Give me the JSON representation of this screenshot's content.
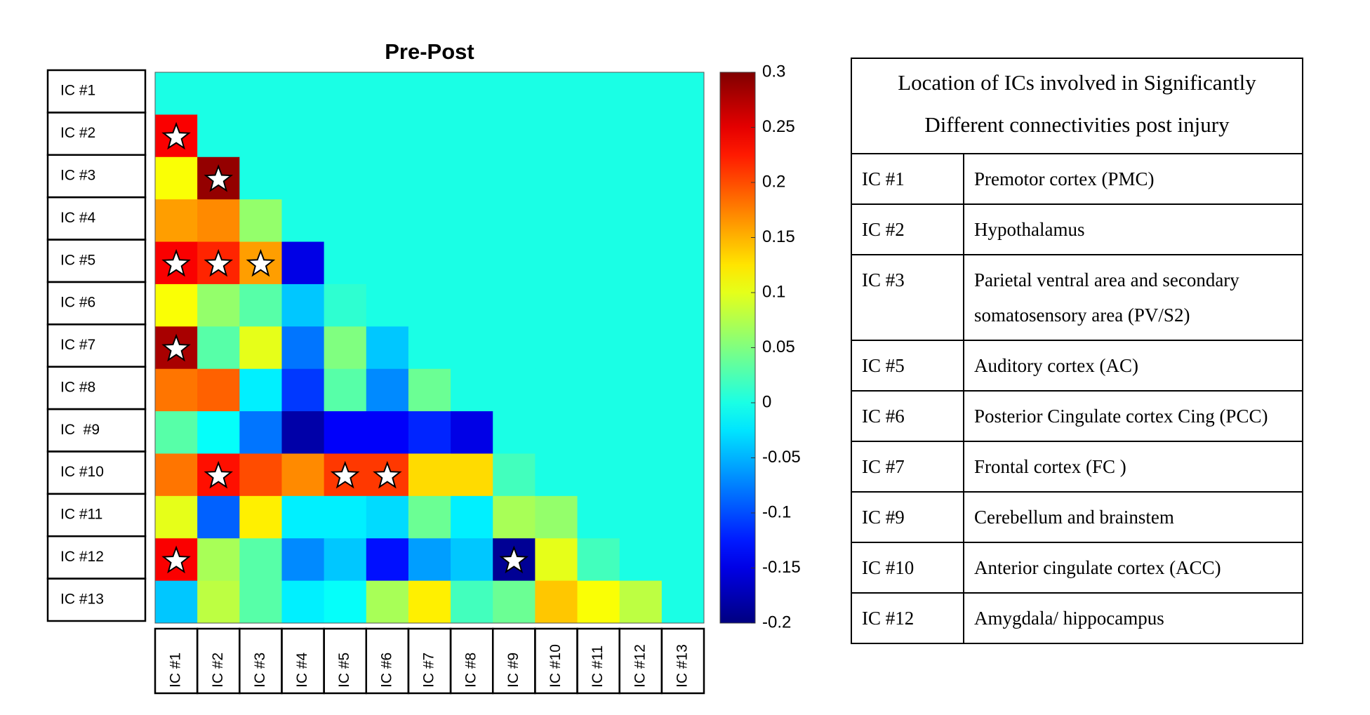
{
  "chart_data": {
    "type": "heatmap",
    "title": "Pre-Post",
    "colormap": "jet",
    "row_labels": [
      "IC #1",
      "IC #2",
      "IC #3",
      "IC #4",
      "IC #5",
      "IC #6",
      "IC #7",
      "IC #8",
      "IC  #9",
      "IC #10",
      "IC #11",
      "IC #12",
      "IC #13"
    ],
    "col_labels": [
      "IC #1",
      "IC #2",
      "IC #3",
      "IC #4",
      "IC #5",
      "IC #6",
      "IC #7",
      "IC #8",
      "IC #9",
      "IC #10",
      "IC #11",
      "IC #12",
      "IC #13"
    ],
    "matrix": [
      [
        0,
        0,
        0,
        0,
        0,
        0,
        0,
        0,
        0,
        0,
        0,
        0,
        0
      ],
      [
        0.24,
        0,
        0,
        0,
        0,
        0,
        0,
        0,
        0,
        0,
        0,
        0,
        0
      ],
      [
        0.11,
        0.29,
        0,
        0,
        0,
        0,
        0,
        0,
        0,
        0,
        0,
        0,
        0
      ],
      [
        0.16,
        0.17,
        0.06,
        0,
        0,
        0,
        0,
        0,
        0,
        0,
        0,
        0,
        0
      ],
      [
        0.24,
        0.22,
        0.16,
        -0.15,
        0,
        0,
        0,
        0,
        0,
        0,
        0,
        0,
        0
      ],
      [
        0.11,
        0.06,
        0.03,
        -0.04,
        0.01,
        0,
        0,
        0,
        0,
        0,
        0,
        0,
        0
      ],
      [
        0.28,
        0.03,
        0.1,
        -0.08,
        0.05,
        -0.04,
        0,
        0,
        0,
        0,
        0,
        0,
        0
      ],
      [
        0.18,
        0.19,
        -0.02,
        -0.11,
        0.03,
        -0.07,
        0.04,
        0,
        0,
        0,
        0,
        0,
        0
      ],
      [
        0.03,
        -0.01,
        -0.08,
        -0.18,
        -0.14,
        -0.14,
        -0.12,
        -0.15,
        0,
        0,
        0,
        0,
        0
      ],
      [
        0.18,
        0.23,
        0.2,
        0.17,
        0.21,
        0.21,
        0.13,
        0.13,
        0.02,
        0,
        0,
        0,
        0
      ],
      [
        0.1,
        -0.09,
        0.12,
        -0.02,
        -0.02,
        -0.03,
        0.04,
        -0.02,
        0.07,
        0.06,
        0,
        0,
        0
      ],
      [
        0.24,
        0.07,
        0.03,
        -0.07,
        -0.04,
        -0.13,
        -0.06,
        -0.04,
        -0.19,
        0.1,
        0.02,
        0,
        0
      ],
      [
        -0.04,
        0.08,
        0.03,
        -0.02,
        -0.01,
        0.07,
        0.12,
        0.02,
        0.04,
        0.14,
        0.11,
        0.08,
        0
      ]
    ],
    "significant": [
      [
        1,
        0
      ],
      [
        2,
        1
      ],
      [
        4,
        0
      ],
      [
        4,
        1
      ],
      [
        4,
        2
      ],
      [
        6,
        0
      ],
      [
        9,
        1
      ],
      [
        9,
        4
      ],
      [
        9,
        5
      ],
      [
        11,
        0
      ],
      [
        11,
        8
      ]
    ],
    "clim": [
      -0.2,
      0.3
    ],
    "cticks": [
      -0.2,
      -0.15,
      -0.1,
      -0.05,
      0,
      0.05,
      0.1,
      0.15,
      0.2,
      0.25,
      0.3
    ]
  },
  "table": {
    "title": "Location of ICs involved in Significantly Different connectivities post injury",
    "rows": [
      [
        "IC #1",
        "Premotor cortex (PMC)"
      ],
      [
        "IC #2",
        "Hypothalamus"
      ],
      [
        "IC #3",
        "Parietal ventral area and secondary somatosensory area (PV/S2)"
      ],
      [
        "IC #5",
        "Auditory cortex (AC)"
      ],
      [
        "IC #6",
        "Posterior Cingulate cortex Cing (PCC)"
      ],
      [
        "IC #7",
        "Frontal cortex (FC )"
      ],
      [
        "IC #9",
        "Cerebellum and brainstem"
      ],
      [
        "IC #10",
        "Anterior cingulate cortex (ACC)"
      ],
      [
        "IC #12",
        "Amygdala/ hippocampus"
      ]
    ]
  }
}
